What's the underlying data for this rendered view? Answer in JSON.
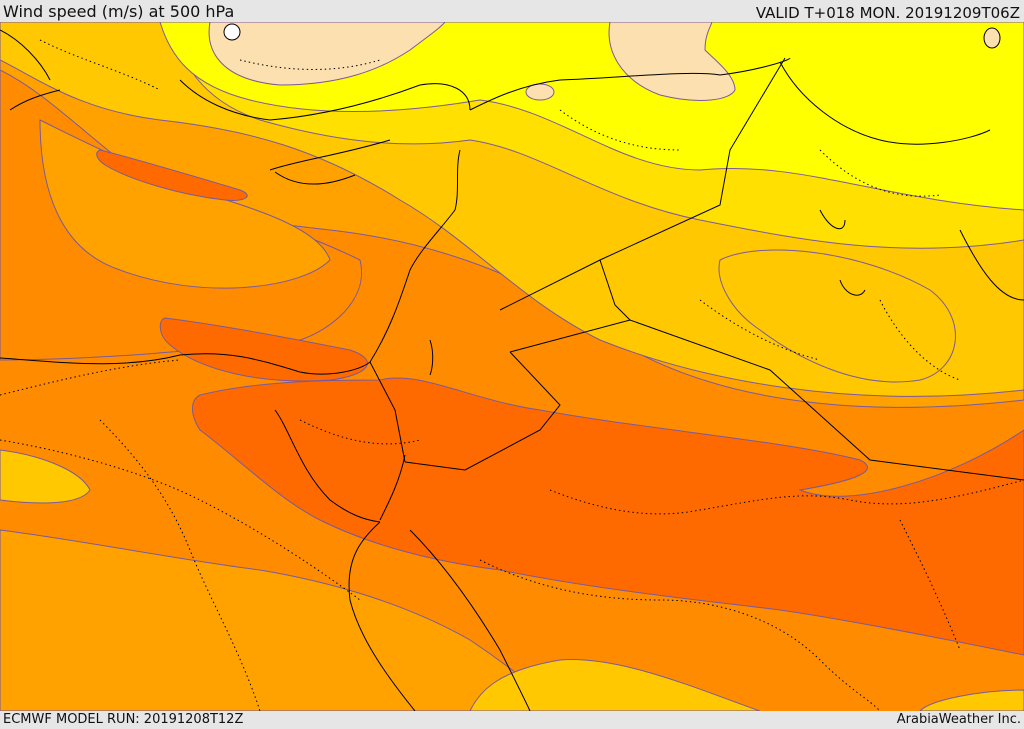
{
  "header": {
    "title": "Wind speed (m/s) at 500 hPa",
    "valid": "VALID T+018 MON. 20191209T06Z"
  },
  "footer": {
    "model_run": "ECMWF MODEL RUN: 20191208T12Z",
    "credit": "ArabiaWeather Inc."
  },
  "map": {
    "variable": "Wind speed at 500 hPa",
    "units": "m/s",
    "palette": {
      "pale": "#fde0b0",
      "yellow": "#ffff00",
      "gold": "#ffe000",
      "amber": "#ffc800",
      "light-orange": "#ffa200",
      "orange": "#ff8c00",
      "deep-orange": "#ff6a00"
    },
    "contour_color": "#7a5a9a",
    "coast_color": "#000000"
  }
}
